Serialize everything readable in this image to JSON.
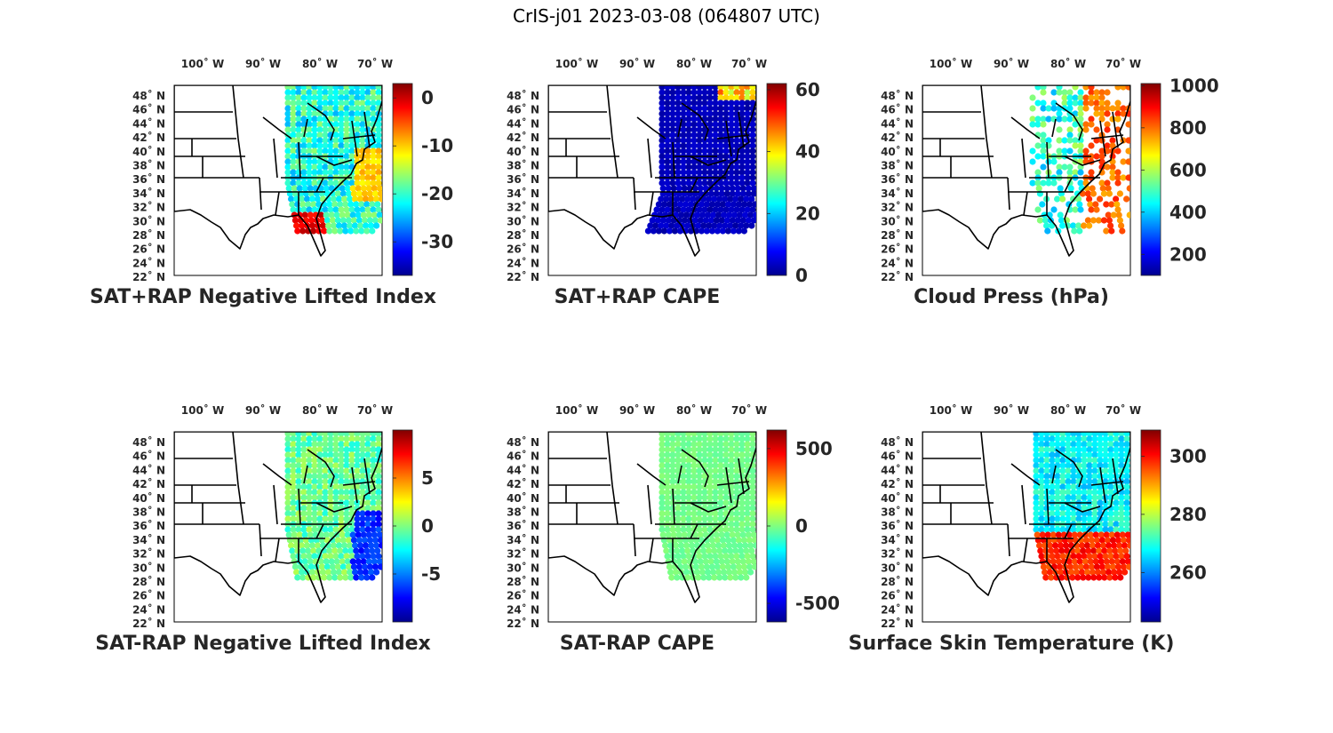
{
  "figure_title": "CrIS-j01 2023-03-08 (064807 UTC)",
  "colormap": [
    "#00008f",
    "#0000ff",
    "#0080ff",
    "#00ffff",
    "#80ff80",
    "#ffff00",
    "#ff8000",
    "#ff0000",
    "#800000"
  ],
  "map_axes": {
    "lon_labels": [
      "100˚ W",
      "90˚ W",
      "80˚ W",
      "70˚ W"
    ],
    "lat_labels": [
      "48˚ N",
      "46˚ N",
      "44˚ N",
      "42˚ N",
      "40˚ N",
      "38˚ N",
      "36˚ N",
      "34˚ N",
      "32˚ N",
      "30˚ N",
      "28˚ N",
      "26˚ N",
      "24˚ N",
      "22˚ N"
    ]
  },
  "chart_data": [
    {
      "type": "heatmap",
      "id": "p1",
      "title": "SAT+RAP Negative Lifted Index",
      "clim": [
        -37,
        3
      ],
      "colorbar_ticks": [
        {
          "value": 0,
          "label": "0"
        },
        {
          "value": -10,
          "label": "-10"
        },
        {
          "value": -20,
          "label": "-20"
        },
        {
          "value": -30,
          "label": "-30"
        }
      ]
    },
    {
      "type": "heatmap",
      "id": "p2",
      "title": "SAT+RAP CAPE",
      "clim": [
        0,
        62
      ],
      "colorbar_ticks": [
        {
          "value": 60,
          "label": "60"
        },
        {
          "value": 40,
          "label": "40"
        },
        {
          "value": 20,
          "label": "20"
        },
        {
          "value": 0,
          "label": "0"
        }
      ]
    },
    {
      "type": "heatmap",
      "id": "p3",
      "title": "Cloud Press (hPa)",
      "clim": [
        100,
        1010
      ],
      "colorbar_ticks": [
        {
          "value": 1000,
          "label": "1000"
        },
        {
          "value": 800,
          "label": "800"
        },
        {
          "value": 600,
          "label": "600"
        },
        {
          "value": 400,
          "label": "400"
        },
        {
          "value": 200,
          "label": "200"
        }
      ]
    },
    {
      "type": "heatmap",
      "id": "p4",
      "title": "SAT-RAP Negative Lifted Index",
      "clim": [
        -10,
        10
      ],
      "colorbar_ticks": [
        {
          "value": 5,
          "label": "5"
        },
        {
          "value": 0,
          "label": "0"
        },
        {
          "value": -5,
          "label": "-5"
        }
      ]
    },
    {
      "type": "heatmap",
      "id": "p5",
      "title": "SAT-RAP CAPE",
      "clim": [
        -620,
        620
      ],
      "colorbar_ticks": [
        {
          "value": 500,
          "label": "500"
        },
        {
          "value": 0,
          "label": "0"
        },
        {
          "value": -500,
          "label": "-500"
        }
      ]
    },
    {
      "type": "heatmap",
      "id": "p6",
      "title": "Surface Skin Temperature (K)",
      "clim": [
        243,
        309
      ],
      "colorbar_ticks": [
        {
          "value": 300,
          "label": "300"
        },
        {
          "value": 280,
          "label": "280"
        },
        {
          "value": 260,
          "label": "260"
        }
      ]
    }
  ]
}
